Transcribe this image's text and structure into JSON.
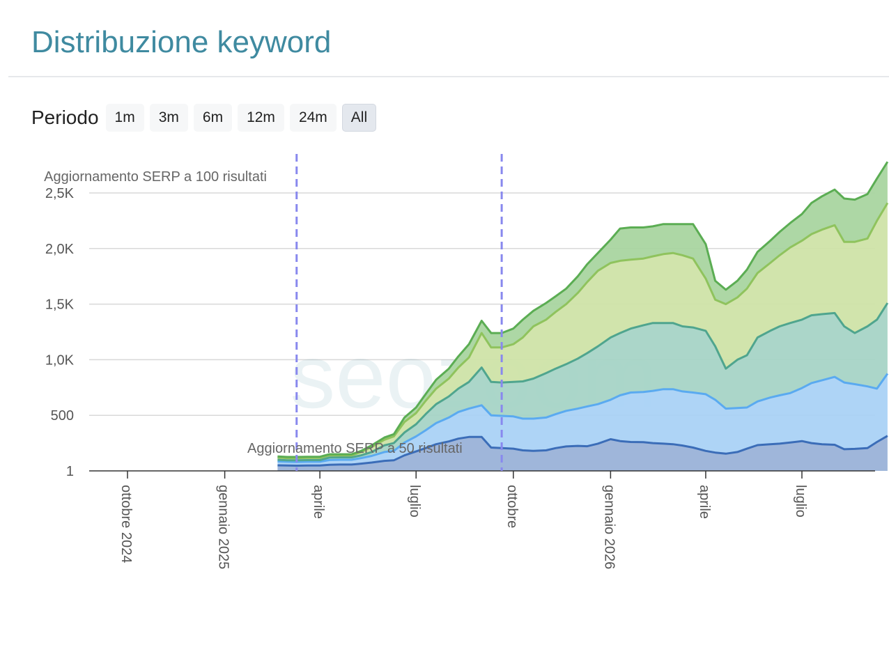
{
  "page": {
    "title": "Distribuzione keyword",
    "period_label": "Periodo",
    "period_buttons": [
      "1m",
      "3m",
      "6m",
      "12m",
      "24m",
      "All"
    ],
    "active_period": "All"
  },
  "watermark": "seozoom",
  "chart_data": {
    "type": "area",
    "stacked": true,
    "x_ticks": [
      {
        "date": "2024-10-01",
        "label": "ottobre 2024"
      },
      {
        "date": "2025-01-01",
        "label": "gennaio 2025"
      },
      {
        "date": "2025-04-01",
        "label": "aprile"
      },
      {
        "date": "2025-07-01",
        "label": "luglio"
      },
      {
        "date": "2025-10-01",
        "label": "ottobre"
      },
      {
        "date": "2026-01-01",
        "label": "gennaio 2026"
      },
      {
        "date": "2026-04-01",
        "label": "aprile"
      },
      {
        "date": "2026-07-01",
        "label": "luglio"
      }
    ],
    "y_ticks": [
      {
        "value": 1,
        "label": "1"
      },
      {
        "value": 500,
        "label": "500"
      },
      {
        "value": 1000,
        "label": "1,0K"
      },
      {
        "value": 1500,
        "label": "1,5K"
      },
      {
        "value": 2000,
        "label": "2,0K"
      },
      {
        "value": 2500,
        "label": "2,5K"
      }
    ],
    "ylim": [
      0,
      2800
    ],
    "xlim": [
      "2024-09-01",
      "2026-09-30"
    ],
    "grid": true,
    "annotations": [
      {
        "date": "2025-03-10",
        "text": "Aggiornamento SERP a 50 risultati",
        "text_position": "bottom"
      },
      {
        "date": "2025-09-20",
        "text": "Aggiornamento SERP a 100 risultati",
        "text_position": "top"
      }
    ],
    "x": [
      "2025-02-20",
      "2025-03-01",
      "2025-03-10",
      "2025-03-20",
      "2025-04-01",
      "2025-04-10",
      "2025-04-20",
      "2025-05-01",
      "2025-05-10",
      "2025-05-20",
      "2025-06-01",
      "2025-06-10",
      "2025-06-20",
      "2025-07-01",
      "2025-07-10",
      "2025-07-20",
      "2025-08-01",
      "2025-08-10",
      "2025-08-20",
      "2025-09-01",
      "2025-09-10",
      "2025-09-20",
      "2025-10-01",
      "2025-10-10",
      "2025-10-20",
      "2025-11-01",
      "2025-11-10",
      "2025-11-20",
      "2025-12-01",
      "2025-12-10",
      "2025-12-20",
      "2026-01-01",
      "2026-01-10",
      "2026-01-20",
      "2026-02-01",
      "2026-02-10",
      "2026-02-20",
      "2026-03-01",
      "2026-03-10",
      "2026-03-20",
      "2026-04-01",
      "2026-04-10",
      "2026-04-20",
      "2026-05-01",
      "2026-05-10",
      "2026-05-20",
      "2026-06-01",
      "2026-06-10",
      "2026-06-20",
      "2026-07-01",
      "2026-07-10",
      "2026-07-20",
      "2026-08-01",
      "2026-08-10",
      "2026-08-20",
      "2026-09-01",
      "2026-09-10",
      "2026-09-20"
    ],
    "series": [
      {
        "color": "#3b6db8",
        "fill": "#9ab2d8",
        "values": [
          50,
          48,
          47,
          48,
          48,
          55,
          57,
          57,
          65,
          75,
          90,
          95,
          140,
          175,
          205,
          240,
          265,
          290,
          305,
          305,
          210,
          205,
          200,
          185,
          180,
          185,
          205,
          220,
          225,
          222,
          245,
          285,
          268,
          260,
          258,
          250,
          245,
          240,
          228,
          210,
          180,
          165,
          155,
          170,
          200,
          232,
          240,
          245,
          255,
          268,
          250,
          240,
          235,
          195,
          198,
          205,
          260,
          315
        ]
      },
      {
        "color": "#5aaaf0",
        "fill": "#aad2f5",
        "values": [
          85,
          82,
          80,
          82,
          82,
          98,
          100,
          100,
          115,
          135,
          170,
          180,
          255,
          310,
          365,
          430,
          480,
          530,
          560,
          590,
          500,
          495,
          490,
          470,
          470,
          480,
          510,
          540,
          560,
          580,
          600,
          640,
          680,
          705,
          710,
          720,
          735,
          735,
          715,
          705,
          690,
          640,
          560,
          565,
          570,
          625,
          660,
          680,
          700,
          745,
          790,
          815,
          845,
          795,
          780,
          760,
          740,
          875
        ]
      },
      {
        "color": "#4fa58e",
        "fill": "#a6d4c6",
        "values": [
          100,
          96,
          95,
          97,
          97,
          120,
          122,
          122,
          140,
          170,
          230,
          250,
          345,
          420,
          510,
          600,
          670,
          740,
          800,
          930,
          800,
          795,
          800,
          805,
          830,
          880,
          920,
          960,
          1010,
          1060,
          1120,
          1200,
          1240,
          1280,
          1310,
          1330,
          1330,
          1330,
          1300,
          1290,
          1260,
          1120,
          920,
          1000,
          1040,
          1200,
          1260,
          1300,
          1330,
          1360,
          1400,
          1410,
          1420,
          1300,
          1240,
          1300,
          1360,
          1510
        ]
      },
      {
        "color": "#8fc35d",
        "fill": "#cfe3a8",
        "values": [
          120,
          115,
          115,
          117,
          117,
          140,
          140,
          140,
          170,
          215,
          280,
          310,
          440,
          520,
          630,
          740,
          830,
          930,
          1020,
          1240,
          1110,
          1110,
          1140,
          1200,
          1300,
          1360,
          1430,
          1500,
          1600,
          1700,
          1800,
          1870,
          1890,
          1900,
          1910,
          1930,
          1950,
          1960,
          1940,
          1910,
          1730,
          1540,
          1500,
          1560,
          1640,
          1780,
          1870,
          1940,
          2010,
          2070,
          2130,
          2170,
          2210,
          2060,
          2060,
          2090,
          2250,
          2410
        ]
      },
      {
        "color": "#5bad53",
        "fill": "#a9d5a0",
        "values": [
          130,
          125,
          125,
          127,
          127,
          150,
          150,
          150,
          180,
          230,
          300,
          330,
          480,
          570,
          690,
          820,
          920,
          1030,
          1140,
          1350,
          1240,
          1240,
          1280,
          1360,
          1440,
          1510,
          1570,
          1640,
          1750,
          1860,
          1960,
          2080,
          2180,
          2190,
          2190,
          2200,
          2220,
          2220,
          2220,
          2220,
          2040,
          1710,
          1630,
          1710,
          1810,
          1970,
          2070,
          2150,
          2230,
          2310,
          2410,
          2470,
          2530,
          2450,
          2440,
          2490,
          2630,
          2780
        ]
      }
    ]
  }
}
